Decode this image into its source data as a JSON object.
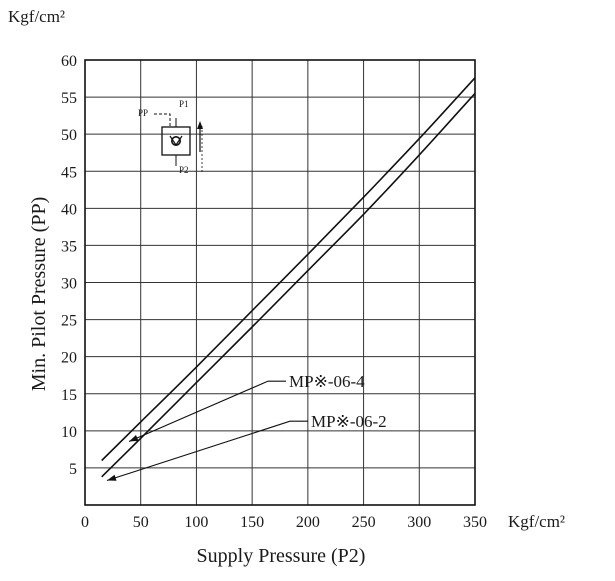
{
  "chart_data": {
    "type": "line",
    "title": "",
    "xlabel": "Supply Pressure (P2)",
    "ylabel": "Min. Pilot Pressure (PP)",
    "x_unit": "Kgf/cm²",
    "y_unit": "Kgf/cm²",
    "xlim": [
      0,
      350
    ],
    "ylim": [
      0,
      60
    ],
    "x_ticks": [
      "0",
      "50",
      "100",
      "150",
      "200",
      "250",
      "300",
      "350"
    ],
    "y_ticks": [
      "5",
      "10",
      "15",
      "20",
      "25",
      "30",
      "35",
      "40",
      "45",
      "50",
      "55",
      "60"
    ],
    "grid": true,
    "legend": "annotations with leader arrows, lower right",
    "series": [
      {
        "name": "MP※-06-4",
        "x": [
          15,
          50,
          100,
          150,
          200,
          250,
          300,
          350
        ],
        "y": [
          6.0,
          11.2,
          18.6,
          26.2,
          33.8,
          41.5,
          49.4,
          57.6
        ]
      },
      {
        "name": "MP※-06-2",
        "x": [
          15,
          50,
          100,
          150,
          200,
          250,
          300,
          350
        ],
        "y": [
          3.8,
          9.0,
          16.5,
          24.0,
          31.6,
          39.2,
          47.2,
          55.5
        ]
      }
    ],
    "inset": {
      "icon": "pilot-check-valve-symbol",
      "labels": [
        "PP",
        "P1",
        "P2"
      ]
    }
  }
}
